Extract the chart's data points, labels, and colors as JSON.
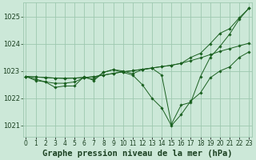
{
  "title": "Graphe pression niveau de la mer (hPa)",
  "background_color": "#cce8d8",
  "grid_color": "#9ec8b0",
  "line_color": "#1a6020",
  "x_values": [
    0,
    1,
    2,
    3,
    4,
    5,
    6,
    7,
    8,
    9,
    10,
    11,
    12,
    13,
    14,
    15,
    16,
    17,
    18,
    19,
    20,
    21,
    22,
    23
  ],
  "series": [
    [
      1022.8,
      1022.7,
      1022.6,
      1022.55,
      1022.55,
      1022.6,
      1022.75,
      1022.7,
      1022.95,
      1023.05,
      1023.0,
      1022.9,
      1023.05,
      1023.1,
      1022.85,
      1021.05,
      1021.75,
      1021.85,
      1022.8,
      1023.5,
      1023.9,
      1024.35,
      1024.9,
      1025.3
    ],
    [
      1022.8,
      1022.65,
      1022.6,
      1022.4,
      1022.45,
      1022.45,
      1022.8,
      1022.65,
      1022.95,
      1023.05,
      1022.95,
      1022.85,
      1022.5,
      1022.0,
      1021.65,
      1021.0,
      1021.4,
      1021.9,
      1022.2,
      1022.75,
      1023.0,
      1023.15,
      1023.5,
      1023.7
    ],
    [
      1022.8,
      1022.78,
      1022.76,
      1022.74,
      1022.73,
      1022.74,
      1022.76,
      1022.79,
      1022.85,
      1022.91,
      1022.97,
      1023.01,
      1023.06,
      1023.11,
      1023.16,
      1023.21,
      1023.28,
      1023.38,
      1023.48,
      1023.6,
      1023.72,
      1023.82,
      1023.92,
      1024.02
    ],
    [
      1022.8,
      1022.78,
      1022.76,
      1022.74,
      1022.73,
      1022.74,
      1022.76,
      1022.79,
      1022.85,
      1022.91,
      1022.97,
      1023.01,
      1023.06,
      1023.11,
      1023.16,
      1023.21,
      1023.28,
      1023.5,
      1023.65,
      1024.0,
      1024.38,
      1024.55,
      1024.95,
      1025.3
    ]
  ],
  "ylim": [
    1020.6,
    1025.5
  ],
  "yticks": [
    1021,
    1022,
    1023,
    1024,
    1025
  ],
  "xlim": [
    -0.3,
    23.3
  ],
  "title_fontsize": 7.5,
  "tick_fontsize": 6.0
}
